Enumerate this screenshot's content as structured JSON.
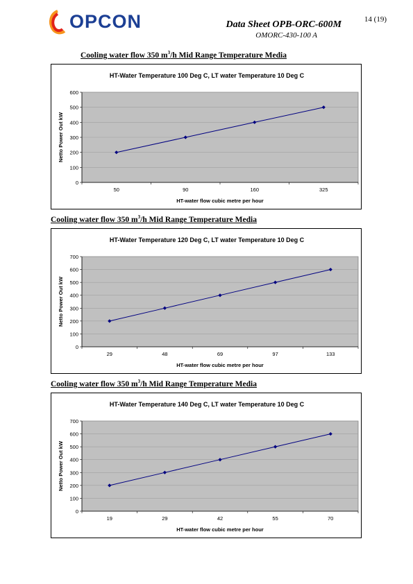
{
  "header": {
    "logo_text": "OPCON",
    "title": "Data Sheet OPB-ORC-600M",
    "subtitle": "OMORC-430-100 A",
    "page_number": "14 (19)"
  },
  "sections": [
    {
      "heading_pre": "Cooling water flow 350 m",
      "heading_sup": "3",
      "heading_post": "/h Mid Range Temperature Media"
    },
    {
      "heading_pre": "Cooling water flow 350 m",
      "heading_sup": "3",
      "heading_post": "/h Mid Range Temperature Media"
    },
    {
      "heading_pre": "Cooling water flow 350 m",
      "heading_sup": "3",
      "heading_post": "/h Mid Range Temperature Media"
    }
  ],
  "colors": {
    "plot_background": "#c0c0c0",
    "series_line": "#000080",
    "logo_blue": "#1c3f94",
    "logo_red": "#e2231a",
    "logo_orange": "#f7941d"
  },
  "chart_data": [
    {
      "type": "line",
      "title": "HT-Water Temperature 100 Deg C, LT water Temperature 10 Deg C",
      "xlabel": "HT-water flow cubic metre per hour",
      "ylabel": "Netto Power Out kW",
      "categories": [
        "50",
        "90",
        "160",
        "325"
      ],
      "values": [
        200,
        300,
        400,
        500
      ],
      "ylim": [
        0,
        600
      ],
      "yticks": [
        0,
        100,
        200,
        300,
        400,
        500,
        600
      ],
      "grid": true,
      "legend": "none"
    },
    {
      "type": "line",
      "title": "HT-Water Temperature 120 Deg C, LT water Temperature 10 Deg C",
      "xlabel": "HT-water flow cubic metre per hour",
      "ylabel": "Netto Power Out kW",
      "categories": [
        "29",
        "48",
        "69",
        "97",
        "133"
      ],
      "values": [
        200,
        300,
        400,
        500,
        600
      ],
      "ylim": [
        0,
        700
      ],
      "yticks": [
        0,
        100,
        200,
        300,
        400,
        500,
        600,
        700
      ],
      "grid": true,
      "legend": "none"
    },
    {
      "type": "line",
      "title": "HT-Water Temperature 140 Deg C, LT water Temperature 10 Deg C",
      "xlabel": "HT-water flow cubic metre per hour",
      "ylabel": "Netto Power Out kW",
      "categories": [
        "19",
        "29",
        "42",
        "55",
        "70"
      ],
      "values": [
        200,
        300,
        400,
        500,
        600
      ],
      "ylim": [
        0,
        700
      ],
      "yticks": [
        0,
        100,
        200,
        300,
        400,
        500,
        600,
        700
      ],
      "grid": true,
      "legend": "none"
    }
  ]
}
